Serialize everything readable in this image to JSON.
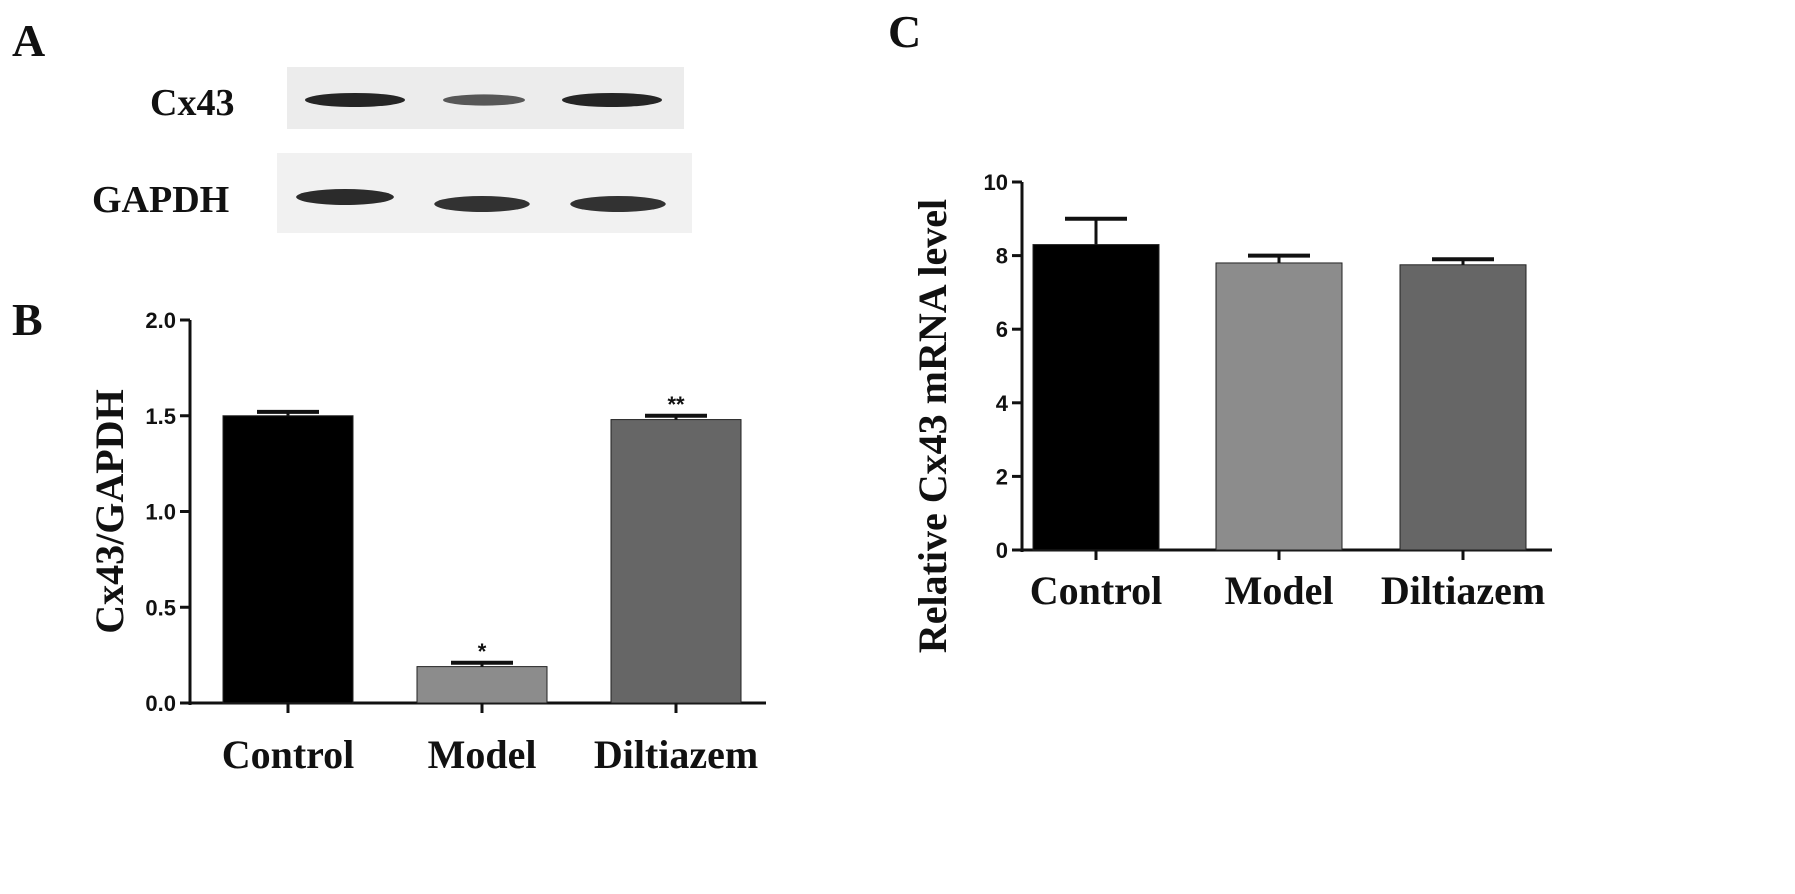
{
  "panels": {
    "a": "A",
    "b": "B",
    "c": "C"
  },
  "blot": {
    "labels": [
      "Cx43",
      "GAPDH"
    ],
    "cx43_band_intensity": [
      1.0,
      0.6,
      1.0
    ],
    "gapdh_band_intensity": [
      0.95,
      0.9,
      0.9
    ]
  },
  "colors": {
    "control": "#000000",
    "model": "#8c8c8c",
    "diltiazem": "#666666"
  },
  "chart_data": [
    {
      "type": "bar",
      "panel": "B",
      "categories": [
        "Control",
        "Model",
        "Diltiazem"
      ],
      "values": [
        1.5,
        0.19,
        1.48
      ],
      "errors": [
        0.02,
        0.02,
        0.02
      ],
      "significance": [
        "",
        "*",
        "**"
      ],
      "ylabel": "Cx43/GAPDH",
      "ylim": [
        0,
        2.0
      ],
      "yticks": [
        "0.0",
        "0.5",
        "1.0",
        "1.5",
        "2.0"
      ]
    },
    {
      "type": "bar",
      "panel": "C",
      "categories": [
        "Control",
        "Model",
        "Diltiazem"
      ],
      "values": [
        8.3,
        7.8,
        7.75
      ],
      "errors": [
        0.7,
        0.2,
        0.15
      ],
      "significance": [
        "",
        "",
        ""
      ],
      "ylabel": "Relative Cx43 mRNA level",
      "ylim": [
        0,
        10
      ],
      "yticks": [
        "0",
        "2",
        "4",
        "6",
        "8",
        "10"
      ]
    }
  ]
}
